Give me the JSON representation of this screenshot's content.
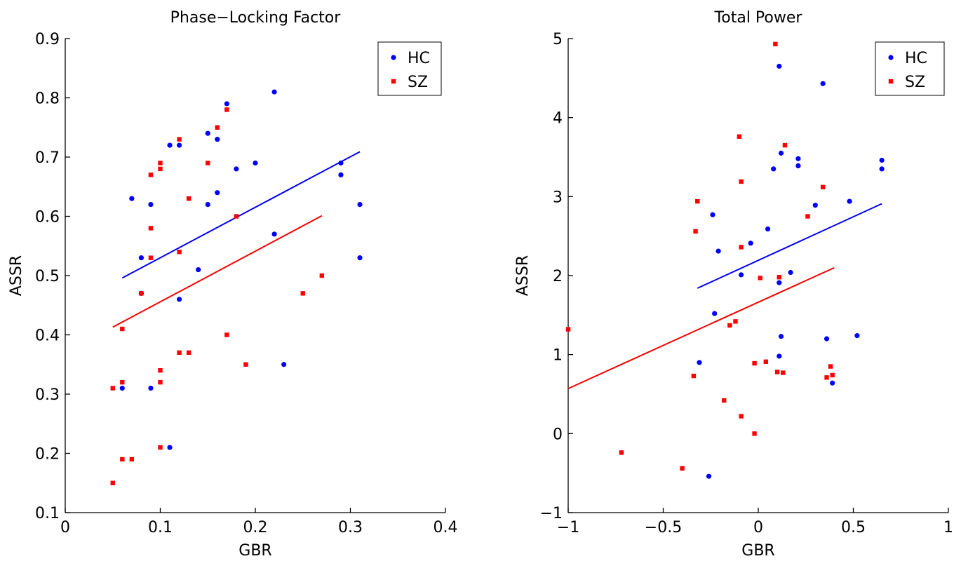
{
  "chart_data": [
    {
      "type": "scatter",
      "title": "Phase−Locking Factor",
      "xlabel": "GBR",
      "ylabel": "ASSR",
      "xlim": [
        0,
        0.4
      ],
      "ylim": [
        0.1,
        0.9
      ],
      "xticks": [
        0,
        0.1,
        0.2,
        0.3,
        0.4
      ],
      "xtick_labels": [
        "0",
        "0.1",
        "0.2",
        "0.3",
        "0.4"
      ],
      "yticks": [
        0.1,
        0.2,
        0.3,
        0.4,
        0.5,
        0.6,
        0.7,
        0.8,
        0.9
      ],
      "ytick_labels": [
        "0.1",
        "0.2",
        "0.3",
        "0.4",
        "0.5",
        "0.6",
        "0.7",
        "0.8",
        "0.9"
      ],
      "legend": "top-right",
      "grid": false,
      "series": [
        {
          "name": "HC",
          "color": "#0000ff",
          "marker": "circle",
          "points": [
            [
              0.06,
              0.31
            ],
            [
              0.07,
              0.63
            ],
            [
              0.08,
              0.53
            ],
            [
              0.08,
              0.47
            ],
            [
              0.09,
              0.62
            ],
            [
              0.09,
              0.31
            ],
            [
              0.11,
              0.72
            ],
            [
              0.11,
              0.21
            ],
            [
              0.12,
              0.72
            ],
            [
              0.12,
              0.46
            ],
            [
              0.14,
              0.51
            ],
            [
              0.15,
              0.74
            ],
            [
              0.15,
              0.62
            ],
            [
              0.16,
              0.73
            ],
            [
              0.16,
              0.64
            ],
            [
              0.17,
              0.79
            ],
            [
              0.18,
              0.68
            ],
            [
              0.2,
              0.69
            ],
            [
              0.22,
              0.81
            ],
            [
              0.22,
              0.57
            ],
            [
              0.23,
              0.35
            ],
            [
              0.29,
              0.69
            ],
            [
              0.29,
              0.67
            ],
            [
              0.31,
              0.62
            ],
            [
              0.31,
              0.53
            ]
          ],
          "fit": [
            [
              0.06,
              0.496
            ],
            [
              0.31,
              0.709
            ]
          ]
        },
        {
          "name": "SZ",
          "color": "#ff0000",
          "marker": "square",
          "points": [
            [
              0.05,
              0.31
            ],
            [
              0.05,
              0.15
            ],
            [
              0.06,
              0.41
            ],
            [
              0.06,
              0.32
            ],
            [
              0.06,
              0.19
            ],
            [
              0.07,
              0.19
            ],
            [
              0.08,
              0.47
            ],
            [
              0.09,
              0.67
            ],
            [
              0.09,
              0.58
            ],
            [
              0.09,
              0.53
            ],
            [
              0.1,
              0.69
            ],
            [
              0.1,
              0.68
            ],
            [
              0.1,
              0.34
            ],
            [
              0.1,
              0.32
            ],
            [
              0.1,
              0.21
            ],
            [
              0.12,
              0.73
            ],
            [
              0.12,
              0.54
            ],
            [
              0.12,
              0.37
            ],
            [
              0.13,
              0.63
            ],
            [
              0.13,
              0.37
            ],
            [
              0.15,
              0.69
            ],
            [
              0.16,
              0.75
            ],
            [
              0.17,
              0.78
            ],
            [
              0.17,
              0.4
            ],
            [
              0.18,
              0.6
            ],
            [
              0.19,
              0.35
            ],
            [
              0.25,
              0.47
            ],
            [
              0.27,
              0.5
            ]
          ],
          "fit": [
            [
              0.05,
              0.413
            ],
            [
              0.27,
              0.601
            ]
          ]
        }
      ]
    },
    {
      "type": "scatter",
      "title": "Total Power",
      "xlabel": "GBR",
      "ylabel": "ASSR",
      "xlim": [
        -1,
        1
      ],
      "ylim": [
        -1,
        5
      ],
      "xticks": [
        -1,
        -0.5,
        0,
        0.5,
        1
      ],
      "xtick_labels": [
        "−1",
        "−0.5",
        "0",
        "0.5",
        "1"
      ],
      "yticks": [
        -1,
        0,
        1,
        2,
        3,
        4,
        5
      ],
      "ytick_labels": [
        "−1",
        "0",
        "1",
        "2",
        "3",
        "4",
        "5"
      ],
      "legend": "top-right",
      "grid": false,
      "series": [
        {
          "name": "HC",
          "color": "#0000ff",
          "marker": "circle",
          "points": [
            [
              0.11,
              4.65
            ],
            [
              0.34,
              4.43
            ],
            [
              0.12,
              3.55
            ],
            [
              0.21,
              3.48
            ],
            [
              0.08,
              3.35
            ],
            [
              0.21,
              3.39
            ],
            [
              0.65,
              3.46
            ],
            [
              0.65,
              3.35
            ],
            [
              0.48,
              2.94
            ],
            [
              0.3,
              2.89
            ],
            [
              -0.24,
              2.77
            ],
            [
              0.05,
              2.59
            ],
            [
              -0.04,
              2.41
            ],
            [
              -0.21,
              2.31
            ],
            [
              0.17,
              2.04
            ],
            [
              -0.09,
              2.01
            ],
            [
              0.11,
              1.91
            ],
            [
              -0.23,
              1.52
            ],
            [
              0.12,
              1.23
            ],
            [
              0.52,
              1.24
            ],
            [
              0.36,
              1.2
            ],
            [
              -0.31,
              0.9
            ],
            [
              0.11,
              0.98
            ],
            [
              0.39,
              0.64
            ],
            [
              -0.26,
              -0.54
            ]
          ],
          "fit": [
            [
              -0.32,
              1.84
            ],
            [
              0.65,
              2.91
            ]
          ]
        },
        {
          "name": "SZ",
          "color": "#ff0000",
          "marker": "square",
          "points": [
            [
              0.09,
              4.93
            ],
            [
              -0.1,
              3.76
            ],
            [
              0.14,
              3.65
            ],
            [
              -0.09,
              3.19
            ],
            [
              0.34,
              3.12
            ],
            [
              -0.32,
              2.94
            ],
            [
              0.26,
              2.75
            ],
            [
              -0.33,
              2.56
            ],
            [
              -0.09,
              2.36
            ],
            [
              0.01,
              1.97
            ],
            [
              0.11,
              1.98
            ],
            [
              -0.12,
              1.42
            ],
            [
              -0.15,
              1.37
            ],
            [
              -1.0,
              1.32
            ],
            [
              -0.02,
              0.89
            ],
            [
              0.04,
              0.91
            ],
            [
              0.1,
              0.78
            ],
            [
              0.13,
              0.77
            ],
            [
              0.38,
              0.85
            ],
            [
              0.39,
              0.74
            ],
            [
              0.36,
              0.71
            ],
            [
              -0.34,
              0.73
            ],
            [
              -0.18,
              0.42
            ],
            [
              -0.09,
              0.22
            ],
            [
              -0.02,
              0.0
            ],
            [
              -0.72,
              -0.24
            ],
            [
              -0.4,
              -0.44
            ]
          ],
          "fit": [
            [
              -1.0,
              0.57
            ],
            [
              0.4,
              2.1
            ]
          ]
        }
      ]
    }
  ]
}
